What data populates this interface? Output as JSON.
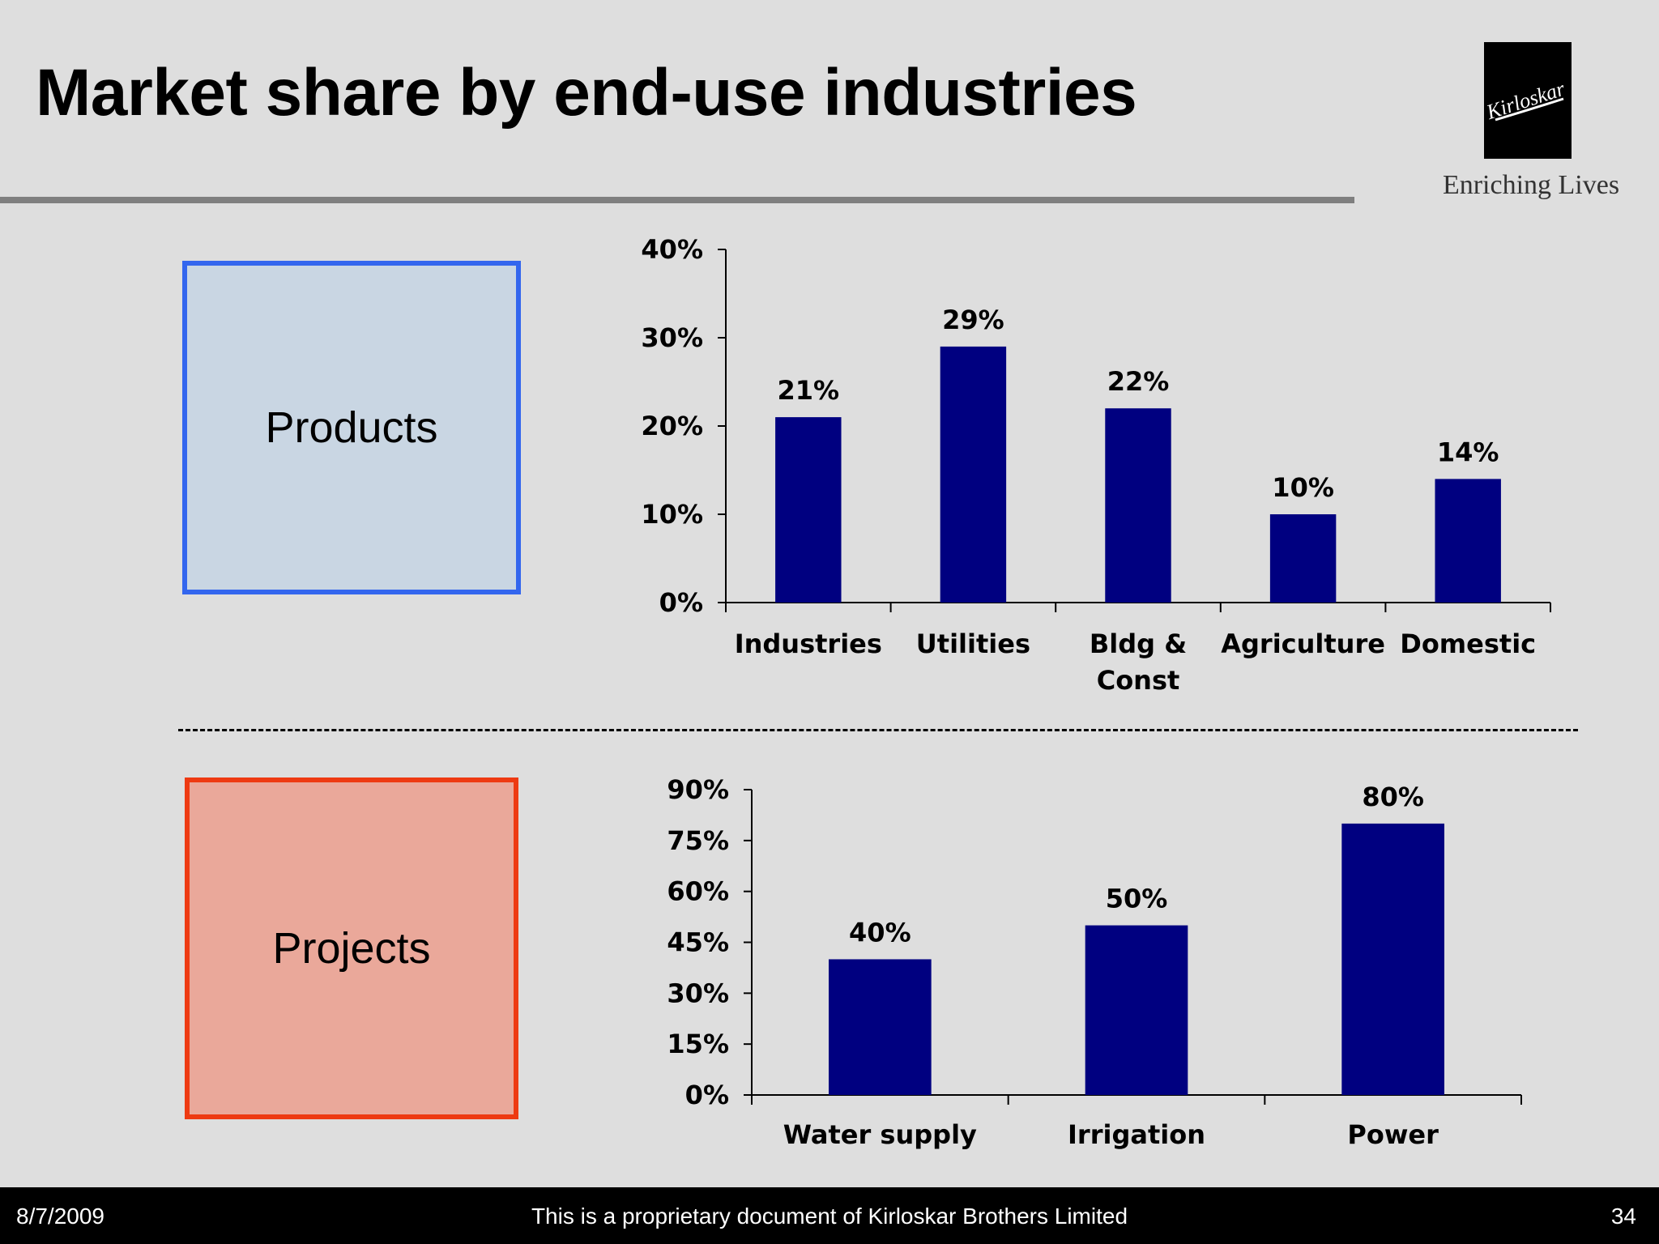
{
  "header": {
    "title": "Market share by end-use industries",
    "tagline": "Enriching Lives",
    "logo_text": "Kirloskar"
  },
  "sections": {
    "products_label": "Products",
    "projects_label": "Projects"
  },
  "colors": {
    "bar": "#000080",
    "products_box_fill": "#c9d6e3",
    "products_box_border": "#3366ee",
    "projects_box_fill": "#eaa89a",
    "projects_box_border": "#ee3a12"
  },
  "chart_data": [
    {
      "type": "bar",
      "categories": [
        "Industries",
        "Utilities",
        "Bldg & Const",
        "Agriculture",
        "Domestic"
      ],
      "values": [
        21,
        29,
        22,
        10,
        14
      ],
      "value_labels": [
        "21%",
        "29%",
        "22%",
        "10%",
        "14%"
      ],
      "ylim": [
        0,
        40
      ],
      "yticks": [
        "0%",
        "10%",
        "20%",
        "30%",
        "40%"
      ],
      "xlabel": "",
      "ylabel": "",
      "grid": false,
      "legend": "none"
    },
    {
      "type": "bar",
      "categories": [
        "Water supply",
        "Irrigation",
        "Power"
      ],
      "values": [
        40,
        50,
        80
      ],
      "value_labels": [
        "40%",
        "50%",
        "80%"
      ],
      "ylim": [
        0,
        90
      ],
      "yticks": [
        "0%",
        "15%",
        "30%",
        "45%",
        "60%",
        "75%",
        "90%"
      ],
      "xlabel": "",
      "ylabel": "",
      "grid": false,
      "legend": "none"
    }
  ],
  "footer": {
    "date": "8/7/2009",
    "note": "This is a proprietary document of Kirloskar Brothers Limited",
    "page": "34"
  }
}
